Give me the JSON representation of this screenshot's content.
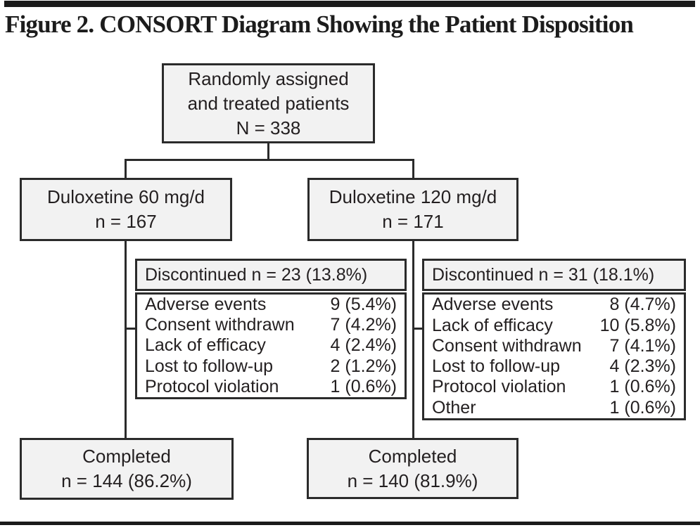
{
  "title": "Figure 2. CONSORT Diagram Showing the Patient Disposition",
  "top_box": {
    "lines": [
      "Randomly assigned",
      "and treated patients",
      "N = 338"
    ]
  },
  "arms": [
    {
      "name": "Duloxetine 60 mg/d",
      "box_lines": [
        "Duloxetine 60 mg/d",
        "n = 167"
      ],
      "discontinued_header": "Discontinued n = 23 (13.8%)",
      "reasons": [
        {
          "label": "Adverse events",
          "value": "9 (5.4%)"
        },
        {
          "label": "Consent withdrawn",
          "value": "7 (4.2%)"
        },
        {
          "label": "Lack of efficacy",
          "value": "4 (2.4%)"
        },
        {
          "label": "Lost to follow-up",
          "value": "2 (1.2%)"
        },
        {
          "label": "Protocol violation",
          "value": "1 (0.6%)"
        }
      ],
      "completed_lines": [
        "Completed",
        "n = 144 (86.2%)"
      ]
    },
    {
      "name": "Duloxetine 120 mg/d",
      "box_lines": [
        "Duloxetine 120 mg/d",
        "n = 171"
      ],
      "discontinued_header": "Discontinued n = 31 (18.1%)",
      "reasons": [
        {
          "label": "Adverse events",
          "value": "8 (4.7%)"
        },
        {
          "label": "Lack of efficacy",
          "value": "10 (5.8%)"
        },
        {
          "label": "Consent withdrawn",
          "value": "7 (4.1%)"
        },
        {
          "label": "Lost to follow-up",
          "value": "4 (2.3%)"
        },
        {
          "label": "Protocol violation",
          "value": "1 (0.6%)"
        },
        {
          "label": "Other",
          "value": "1 (0.6%)"
        }
      ],
      "completed_lines": [
        "Completed",
        "n = 140 (81.9%)"
      ]
    }
  ],
  "colors": {
    "box_fill": "#f2f2f2",
    "box_border": "#2b2b2b",
    "text": "#231f20",
    "rule": "#1a1a1a"
  }
}
